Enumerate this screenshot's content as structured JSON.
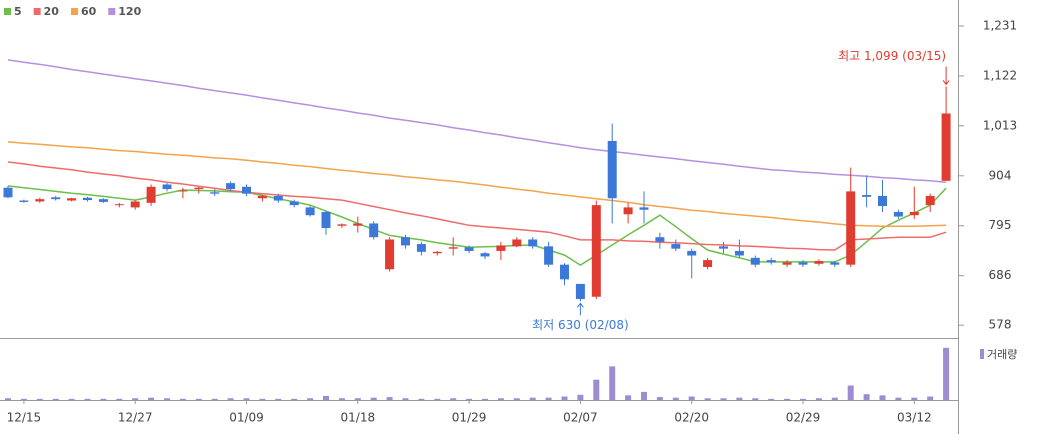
{
  "chart_data": {
    "type": "candlestick",
    "categories": [
      null,
      "12/15",
      null,
      null,
      null,
      null,
      null,
      null,
      "12/27",
      null,
      null,
      null,
      null,
      null,
      null,
      "01/09",
      null,
      null,
      null,
      null,
      null,
      null,
      "01/18",
      null,
      null,
      null,
      null,
      null,
      null,
      "01/29",
      null,
      null,
      null,
      null,
      null,
      null,
      "02/07",
      null,
      null,
      null,
      null,
      null,
      null,
      "02/20",
      null,
      null,
      null,
      null,
      null,
      null,
      "02/29",
      null,
      null,
      null,
      null,
      null,
      null,
      "03/12",
      null,
      null
    ],
    "open": [
      878,
      850,
      848,
      857,
      850,
      856,
      853,
      840,
      835,
      845,
      885,
      870,
      875,
      868,
      888,
      880,
      855,
      860,
      848,
      835,
      825,
      795,
      795,
      800,
      700,
      770,
      755,
      735,
      745,
      748,
      735,
      740,
      750,
      765,
      750,
      710,
      668,
      640,
      980,
      820,
      835,
      770,
      755,
      740,
      705,
      750,
      740,
      725,
      720,
      710,
      715,
      712,
      715,
      710,
      862,
      860,
      825,
      818,
      840,
      893
    ],
    "high": [
      882,
      852,
      856,
      860,
      856,
      858,
      855,
      845,
      850,
      885,
      888,
      878,
      880,
      875,
      892,
      885,
      862,
      865,
      852,
      838,
      828,
      800,
      815,
      805,
      770,
      775,
      760,
      740,
      770,
      752,
      738,
      760,
      770,
      770,
      760,
      713,
      668,
      850,
      1018,
      845,
      870,
      780,
      765,
      745,
      725,
      760,
      765,
      730,
      725,
      720,
      720,
      722,
      718,
      922,
      905,
      895,
      830,
      880,
      865,
      1099
    ],
    "low": [
      855,
      845,
      845,
      850,
      848,
      848,
      845,
      835,
      830,
      838,
      870,
      855,
      865,
      860,
      870,
      860,
      848,
      845,
      835,
      815,
      775,
      790,
      780,
      765,
      695,
      745,
      730,
      730,
      730,
      735,
      722,
      720,
      748,
      745,
      705,
      665,
      630,
      635,
      800,
      800,
      800,
      745,
      740,
      680,
      700,
      735,
      725,
      705,
      710,
      705,
      705,
      708,
      705,
      705,
      835,
      825,
      810,
      810,
      825,
      893
    ],
    "close": [
      857,
      847,
      853,
      853,
      855,
      851,
      847,
      842,
      848,
      880,
      875,
      872,
      878,
      865,
      875,
      865,
      860,
      850,
      840,
      818,
      790,
      798,
      800,
      770,
      765,
      752,
      738,
      738,
      748,
      740,
      728,
      752,
      765,
      750,
      710,
      678,
      635,
      840,
      855,
      835,
      830,
      760,
      745,
      730,
      720,
      745,
      730,
      710,
      715,
      715,
      710,
      718,
      710,
      870,
      858,
      838,
      815,
      825,
      860,
      1040
    ],
    "up_color": "#e03c31",
    "down_color": "#3c78d8",
    "series": [
      {
        "name": "5",
        "color": "#6cbf4a",
        "values": [
          882,
          878,
          874,
          870,
          866,
          863,
          859,
          855,
          851,
          858,
          866,
          873,
          872,
          871,
          869,
          868,
          861,
          854,
          847,
          840,
          827,
          814,
          800,
          787,
          774,
          769,
          764,
          758,
          753,
          748,
          749,
          750,
          752,
          753,
          742,
          731,
          709,
          731,
          753,
          775,
          796,
          818,
          793,
          767,
          742,
          733,
          725,
          716,
          716,
          716,
          716,
          716,
          716,
          731,
          760,
          790,
          807,
          823,
          840,
          877
        ]
      },
      {
        "name": "20",
        "color": "#ef6b6b",
        "values": [
          934,
          930,
          925,
          921,
          917,
          912,
          908,
          904,
          899,
          895,
          890,
          886,
          881,
          877,
          872,
          868,
          865,
          862,
          859,
          857,
          854,
          851,
          844,
          837,
          830,
          823,
          817,
          810,
          803,
          796,
          793,
          790,
          787,
          784,
          781,
          773,
          764,
          764,
          764,
          762,
          761,
          759,
          758,
          756,
          754,
          753,
          751,
          750,
          748,
          746,
          745,
          743,
          742,
          764,
          766,
          768,
          770,
          770,
          770,
          781
        ]
      },
      {
        "name": "60",
        "color": "#f5a24a",
        "values": [
          978,
          975,
          973,
          970,
          967,
          965,
          962,
          959,
          957,
          954,
          951,
          949,
          946,
          943,
          941,
          938,
          934,
          931,
          927,
          924,
          920,
          916,
          913,
          909,
          906,
          902,
          899,
          895,
          892,
          888,
          884,
          879,
          875,
          871,
          866,
          862,
          858,
          854,
          850,
          846,
          841,
          837,
          833,
          829,
          826,
          822,
          819,
          816,
          813,
          809,
          806,
          803,
          799,
          796,
          795,
          794,
          794,
          794,
          795,
          796
        ]
      },
      {
        "name": "120",
        "color": "#b78fe0",
        "values": [
          1157,
          1152,
          1147,
          1142,
          1136,
          1131,
          1126,
          1121,
          1116,
          1111,
          1106,
          1101,
          1095,
          1090,
          1085,
          1080,
          1074,
          1069,
          1063,
          1058,
          1052,
          1047,
          1041,
          1036,
          1030,
          1025,
          1020,
          1015,
          1009,
          1004,
          998,
          993,
          987,
          982,
          976,
          971,
          965,
          961,
          957,
          953,
          949,
          945,
          941,
          937,
          933,
          929,
          925,
          921,
          917,
          915,
          912,
          910,
          907,
          905,
          903,
          900,
          898,
          895,
          893,
          890
        ]
      }
    ],
    "volume": {
      "name": "거래량",
      "color": "#9d8ccf",
      "max": 100,
      "values": [
        3,
        2,
        2,
        2,
        2,
        2,
        2,
        2,
        3,
        4,
        3,
        2,
        2,
        2,
        3,
        3,
        2,
        2,
        2,
        3,
        7,
        3,
        3,
        4,
        5,
        3,
        2,
        2,
        3,
        2,
        2,
        3,
        3,
        4,
        4,
        6,
        9,
        35,
        58,
        8,
        14,
        5,
        4,
        6,
        3,
        3,
        4,
        3,
        2,
        2,
        2,
        3,
        4,
        25,
        10,
        8,
        4,
        4,
        6,
        90
      ]
    },
    "ylim": [
      550,
      1244
    ],
    "yticks": [
      578,
      686,
      795,
      904,
      {
        "value": 1013,
        "label": "1,013"
      },
      {
        "value": 1122,
        "label": "1,122"
      },
      {
        "value": 1231,
        "label": "1,231"
      }
    ],
    "annotations": [
      {
        "text": "최고 1,099 (03/15)",
        "color": "#e03c31"
      },
      {
        "text": "최저 630 (02/08)",
        "color": "#3c78d8"
      }
    ]
  }
}
